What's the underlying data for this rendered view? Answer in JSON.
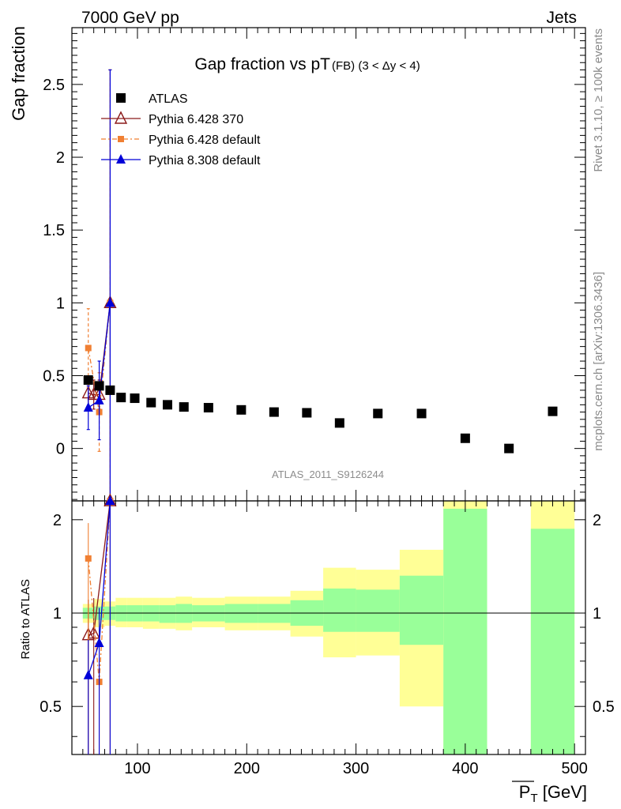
{
  "header": {
    "left": "7000 GeV pp",
    "right": "Jets"
  },
  "side_labels": {
    "rivet": "Rivet 3.1.10, ≥ 100k events",
    "mcplots": "mcplots.cern.ch [arXiv:1306.3436]"
  },
  "watermark": "ATLAS_2011_S9126244",
  "chart_data": {
    "type": "scatter",
    "title": "Gap fraction vs pT",
    "title_sub": "(FB) (3 < Δy < 4)",
    "ylabel": "Gap fraction",
    "ratio_ylabel": "Ratio to ATLAS",
    "xlabel": "P_T [GeV]",
    "xlabel_main": "P",
    "xlabel_sub": "T",
    "xlabel_unit": " [GeV]",
    "xlim": [
      40,
      510
    ],
    "ylim": [
      -0.36,
      2.89
    ],
    "ratio_ylim": [
      0.35,
      2.3
    ],
    "ratio_log": true,
    "x_ticks": [
      "100",
      "200",
      "300",
      "400",
      "500"
    ],
    "y_ticks": [
      "0",
      "0.5",
      "1",
      "1.5",
      "2",
      "2.5"
    ],
    "ratio_ticks": [
      "0.5",
      "1",
      "2"
    ],
    "legend_position": "top-left",
    "series": [
      {
        "name": "ATLAS",
        "color": "#000000",
        "marker": "square",
        "x": [
          55,
          65,
          75,
          85,
          97.5,
          112.5,
          127.5,
          142.5,
          165,
          195,
          225,
          255,
          285,
          320,
          360,
          400,
          440,
          480
        ],
        "y": [
          0.47,
          0.43,
          0.4,
          0.35,
          0.345,
          0.315,
          0.3,
          0.285,
          0.28,
          0.265,
          0.25,
          0.245,
          0.175,
          0.24,
          0.24,
          0.07,
          0.0,
          0.255
        ]
      },
      {
        "name": "Pythia 6.428 370",
        "color": "#8b1a1a",
        "marker": "open-triangle",
        "x": [
          55,
          60,
          65,
          75
        ],
        "y": [
          0.38,
          0.37,
          0.37,
          1.0
        ],
        "yerr": [
          0.1,
          0.1,
          0.1,
          1.6
        ]
      },
      {
        "name": "Pythia 6.428 default",
        "color": "#f07f32",
        "marker": "square-small",
        "x": [
          55,
          65,
          75
        ],
        "y": [
          0.69,
          0.25,
          1.0
        ],
        "yerr": [
          0.27,
          0.27,
          1.6
        ]
      },
      {
        "name": "Pythia 8.308 default",
        "color": "#0000d8",
        "marker": "triangle",
        "x": [
          55,
          65,
          75
        ],
        "y": [
          0.28,
          0.33,
          1.0
        ],
        "yerr": [
          0.15,
          0.27,
          1.6
        ]
      }
    ],
    "ratio_series": [
      {
        "name": "Pythia 6.428 370",
        "x": [
          55,
          60,
          75
        ],
        "y": [
          0.85,
          0.86,
          2.3
        ]
      },
      {
        "name": "Pythia 6.428 default",
        "x": [
          55,
          65,
          75
        ],
        "y": [
          1.5,
          0.6,
          2.3
        ]
      },
      {
        "name": "Pythia 8.308 default",
        "x": [
          55,
          65,
          75
        ],
        "y": [
          0.63,
          0.8,
          2.3
        ]
      }
    ],
    "ratio_bands": [
      {
        "x0": 50,
        "x1": 60,
        "y_lo": 0.93,
        "y_hi": 1.07,
        "g_lo": 0.96,
        "g_hi": 1.04
      },
      {
        "x0": 60,
        "x1": 70,
        "y_lo": 0.9,
        "y_hi": 1.11,
        "g_lo": 0.95,
        "g_hi": 1.05
      },
      {
        "x0": 70,
        "x1": 80,
        "y_lo": 0.91,
        "y_hi": 1.09,
        "g_lo": 0.95,
        "g_hi": 1.05
      },
      {
        "x0": 80,
        "x1": 90,
        "y_lo": 0.9,
        "y_hi": 1.12,
        "g_lo": 0.94,
        "g_hi": 1.06
      },
      {
        "x0": 90,
        "x1": 105,
        "y_lo": 0.9,
        "y_hi": 1.12,
        "g_lo": 0.94,
        "g_hi": 1.06
      },
      {
        "x0": 105,
        "x1": 120,
        "y_lo": 0.89,
        "y_hi": 1.12,
        "g_lo": 0.94,
        "g_hi": 1.06
      },
      {
        "x0": 120,
        "x1": 135,
        "y_lo": 0.89,
        "y_hi": 1.12,
        "g_lo": 0.93,
        "g_hi": 1.06
      },
      {
        "x0": 135,
        "x1": 150,
        "y_lo": 0.88,
        "y_hi": 1.13,
        "g_lo": 0.93,
        "g_hi": 1.07
      },
      {
        "x0": 150,
        "x1": 180,
        "y_lo": 0.9,
        "y_hi": 1.12,
        "g_lo": 0.94,
        "g_hi": 1.06
      },
      {
        "x0": 180,
        "x1": 210,
        "y_lo": 0.88,
        "y_hi": 1.13,
        "g_lo": 0.93,
        "g_hi": 1.07
      },
      {
        "x0": 210,
        "x1": 240,
        "y_lo": 0.88,
        "y_hi": 1.13,
        "g_lo": 0.93,
        "g_hi": 1.07
      },
      {
        "x0": 240,
        "x1": 270,
        "y_lo": 0.84,
        "y_hi": 1.18,
        "g_lo": 0.91,
        "g_hi": 1.1
      },
      {
        "x0": 270,
        "x1": 300,
        "y_lo": 0.72,
        "y_hi": 1.4,
        "g_lo": 0.87,
        "g_hi": 1.2
      },
      {
        "x0": 300,
        "x1": 340,
        "y_lo": 0.73,
        "y_hi": 1.38,
        "g_lo": 0.87,
        "g_hi": 1.19
      },
      {
        "x0": 340,
        "x1": 380,
        "y_lo": 0.5,
        "y_hi": 1.6,
        "g_lo": 0.79,
        "g_hi": 1.32
      },
      {
        "x0": 380,
        "x1": 420,
        "y_lo": 0.35,
        "y_hi": 2.3,
        "g_lo": 0.35,
        "g_hi": 2.17
      },
      {
        "x0": 460,
        "x1": 500,
        "y_lo": 0.35,
        "y_hi": 2.3,
        "g_lo": 0.35,
        "g_hi": 1.87
      }
    ]
  }
}
